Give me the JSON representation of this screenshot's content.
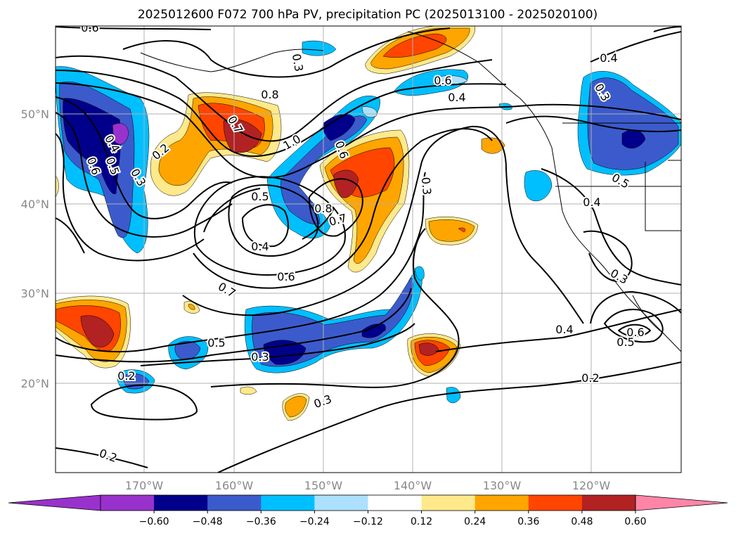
{
  "title": "2025012600 F072 700 hPa PV, precipitation PC (2025013100 - 2025020100)",
  "axes": {
    "lat_labels": [
      "50°N",
      "40°N",
      "30°N",
      "20°N"
    ],
    "lon_labels": [
      "170°W",
      "160°W",
      "150°W",
      "140°W",
      "130°W",
      "120°W"
    ]
  },
  "colorbar": {
    "tick_labels": [
      "−0.60",
      "−0.48",
      "−0.36",
      "−0.24",
      "−0.12",
      "0.12",
      "0.24",
      "0.36",
      "0.48",
      "0.60"
    ],
    "colors": {
      "under": "#9932CC",
      "bins": [
        "#9932CC",
        "#00008B",
        "#3B5BCC",
        "#00BFFF",
        "#ADE0FF",
        "#FFFFFF",
        "#FFE98A",
        "#FFA500",
        "#FF4500",
        "#B22222"
      ],
      "over": "#FF85A8"
    }
  },
  "contour_labels": [
    "0.6",
    "0.3",
    "0.4",
    "0.8",
    "0.6",
    "0.4",
    "0.3",
    "0.7",
    "1.0",
    "0.2",
    "0.4",
    "0.5",
    "0.6",
    "0.3",
    "0.6",
    "0.5",
    "0.8",
    "0.7",
    "0.3",
    "0.5",
    "0.4",
    "0.4",
    "0.6",
    "0.7",
    "0.5",
    "0.3",
    "0.4",
    "0.3",
    "0.6",
    "0.5",
    "0.2",
    "0.2",
    "0.3",
    "0.2"
  ],
  "chart_data": {
    "type": "heatmap",
    "title": "2025012600 F072 700 hPa PV, precipitation PC (2025013100 - 2025020100)",
    "fields": [
      "700 hPa PV (contours)",
      "precipitation PC (shading)"
    ],
    "x_ticks": [
      "170°W",
      "160°W",
      "150°W",
      "140°W",
      "130°W",
      "120°W"
    ],
    "y_ticks": [
      "50°N",
      "40°N",
      "30°N",
      "20°N"
    ],
    "colorbar_levels": [
      -0.6,
      -0.48,
      -0.36,
      -0.24,
      -0.12,
      0.12,
      0.24,
      0.36,
      0.48,
      0.6
    ],
    "grid": true,
    "colorbar_placement": "bottom",
    "contour_values": [
      0.2,
      0.3,
      0.4,
      0.5,
      0.6,
      0.7,
      0.8,
      1.0
    ],
    "pc_features": [
      {
        "region": "dateline 40-52N",
        "sign": "negative",
        "peak": -0.6
      },
      {
        "region": "161W 49N",
        "sign": "positive",
        "peak": 0.48
      },
      {
        "region": "150W 47N",
        "sign": "negative",
        "peak": -0.48
      },
      {
        "region": "146W 44N",
        "sign": "positive",
        "peak": 0.48
      },
      {
        "region": "142W 60N",
        "sign": "positive",
        "peak": 0.36
      },
      {
        "region": "Pacific NW 46-53N 118W",
        "sign": "negative",
        "peak": -0.48
      },
      {
        "region": "175W 26N",
        "sign": "positive",
        "peak": 0.48
      },
      {
        "region": "153W 24N",
        "sign": "negative",
        "peak": -0.48
      },
      {
        "region": "138W 24N",
        "sign": "positive",
        "peak": 0.48
      },
      {
        "region": "145W 28N",
        "sign": "negative",
        "peak": -0.36
      }
    ]
  }
}
